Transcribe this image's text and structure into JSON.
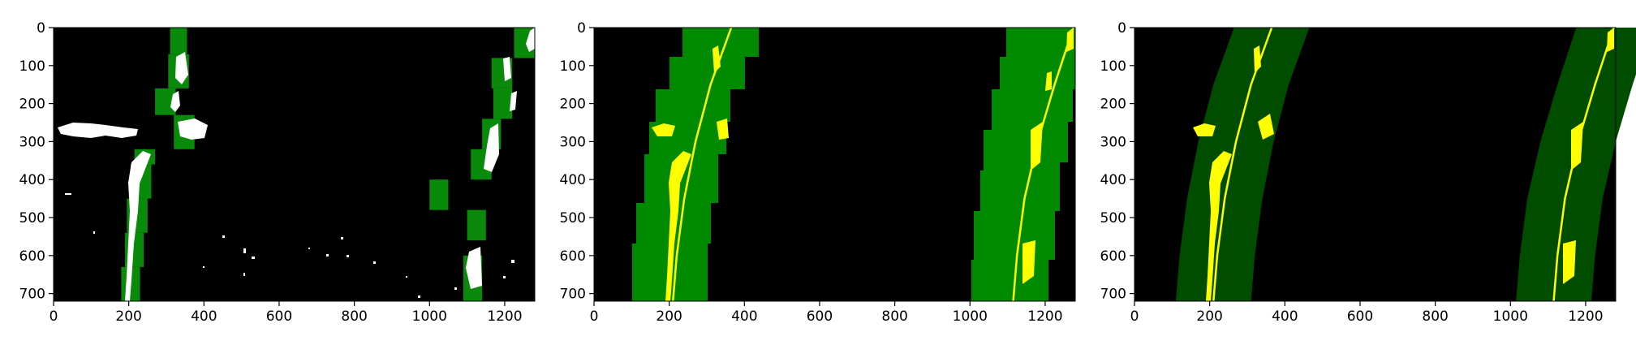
{
  "figure": {
    "description_panels": [
      "left",
      "middle",
      "right"
    ]
  },
  "chart_data": [
    {
      "type": "heatmap",
      "panel": "sliding-window-search",
      "xlim": [
        0,
        1280
      ],
      "ylim": [
        720,
        0
      ],
      "xticks": [
        "0",
        "200",
        "400",
        "600",
        "800",
        "1000",
        "1200"
      ],
      "yticks": [
        "0",
        "100",
        "200",
        "300",
        "400",
        "500",
        "600",
        "700"
      ],
      "colors": {
        "background": "#000000",
        "window": "#0a8a0a",
        "pixels": "#ffffff"
      },
      "windows": [
        {
          "x0": 180,
          "x1": 230,
          "y0": 630,
          "y1": 720
        },
        {
          "x0": 190,
          "x1": 240,
          "y0": 540,
          "y1": 630
        },
        {
          "x0": 195,
          "x1": 250,
          "y0": 450,
          "y1": 540
        },
        {
          "x0": 205,
          "x1": 260,
          "y0": 360,
          "y1": 450
        },
        {
          "x0": 215,
          "x1": 270,
          "y0": 320,
          "y1": 360
        },
        {
          "x0": 320,
          "x1": 375,
          "y0": 230,
          "y1": 320
        },
        {
          "x0": 270,
          "x1": 325,
          "y0": 160,
          "y1": 230
        },
        {
          "x0": 305,
          "x1": 360,
          "y0": 70,
          "y1": 160
        },
        {
          "x0": 310,
          "x1": 355,
          "y0": 0,
          "y1": 70
        },
        {
          "x0": 1090,
          "x1": 1140,
          "y0": 600,
          "y1": 720
        },
        {
          "x0": 1100,
          "x1": 1150,
          "y0": 480,
          "y1": 560
        },
        {
          "x0": 1000,
          "x1": 1050,
          "y0": 400,
          "y1": 480
        },
        {
          "x0": 1110,
          "x1": 1165,
          "y0": 320,
          "y1": 400
        },
        {
          "x0": 1140,
          "x1": 1190,
          "y0": 240,
          "y1": 320
        },
        {
          "x0": 1170,
          "x1": 1220,
          "y0": 160,
          "y1": 240
        },
        {
          "x0": 1165,
          "x1": 1220,
          "y0": 80,
          "y1": 160
        },
        {
          "x0": 1225,
          "x1": 1280,
          "y0": 0,
          "y1": 80
        }
      ]
    },
    {
      "type": "line",
      "panel": "polynomial-fit-windows",
      "xlim": [
        0,
        1280
      ],
      "ylim": [
        720,
        0
      ],
      "xticks": [
        "0",
        "200",
        "400",
        "600",
        "800",
        "1000",
        "1200"
      ],
      "yticks": [
        "0",
        "100",
        "200",
        "300",
        "400",
        "500",
        "600",
        "700"
      ],
      "colors": {
        "background": "#000000",
        "window": "#008a00",
        "pixels": "#ffff00",
        "fit": "#ffff00"
      },
      "series": [
        {
          "x": [
            210,
            220,
            240,
            270,
            310,
            365
          ],
          "y": [
            720,
            600,
            450,
            300,
            150,
            0
          ]
        },
        {
          "x": [
            1115,
            1125,
            1145,
            1180,
            1225,
            1275
          ],
          "y": [
            720,
            600,
            450,
            300,
            150,
            0
          ]
        }
      ]
    },
    {
      "type": "line",
      "panel": "polynomial-fit-margin",
      "xlim": [
        0,
        1280
      ],
      "ylim": [
        720,
        0
      ],
      "xticks": [
        "0",
        "200",
        "400",
        "600",
        "800",
        "1000",
        "1200"
      ],
      "yticks": [
        "0",
        "100",
        "200",
        "300",
        "400",
        "500",
        "600",
        "700"
      ],
      "colors": {
        "background": "#000000",
        "band": "#004d00",
        "pixels": "#ffff00",
        "fit": "#ffff00"
      },
      "series": [
        {
          "x": [
            210,
            220,
            240,
            270,
            310,
            365
          ],
          "y": [
            720,
            600,
            450,
            300,
            150,
            0
          ]
        },
        {
          "x": [
            1115,
            1125,
            1145,
            1180,
            1225,
            1275
          ],
          "y": [
            720,
            600,
            450,
            300,
            150,
            0
          ]
        }
      ]
    }
  ]
}
